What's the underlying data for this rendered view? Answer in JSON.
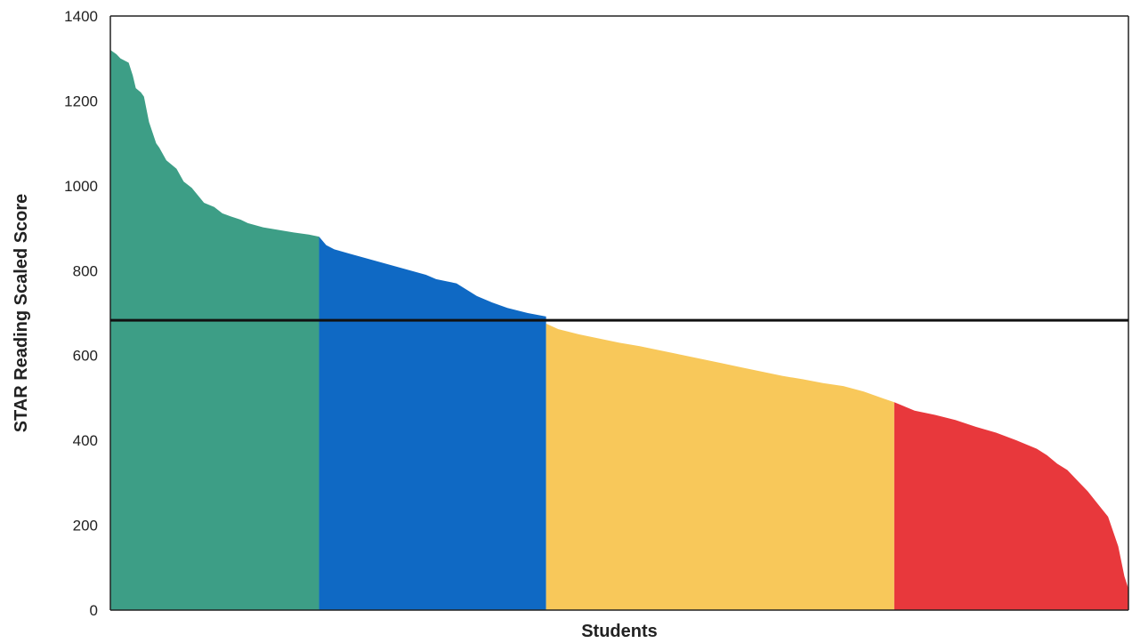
{
  "chart_data": {
    "type": "area",
    "title": "",
    "xlabel": "Students",
    "ylabel": "STAR Reading Scaled Score",
    "ylim": [
      0,
      1400
    ],
    "yticks": [
      0,
      200,
      400,
      600,
      800,
      1000,
      1200,
      1400
    ],
    "grid": false,
    "legend": "none",
    "x_domain": [
      0,
      1000
    ],
    "benchmark": {
      "value": 683,
      "color": "#111111"
    },
    "series": [
      {
        "color": "#3d9e86",
        "x": [
          0,
          6,
          10,
          18,
          22,
          25,
          30,
          33,
          38,
          45,
          48,
          55,
          60,
          65,
          72,
          80,
          92,
          102,
          110,
          118,
          128,
          135,
          150,
          165,
          180,
          195,
          205
        ],
        "values": [
          1320,
          1310,
          1300,
          1290,
          1260,
          1230,
          1220,
          1210,
          1150,
          1100,
          1090,
          1060,
          1050,
          1040,
          1010,
          995,
          960,
          950,
          935,
          928,
          920,
          912,
          902,
          896,
          890,
          885,
          880
        ]
      },
      {
        "color": "#0f69c4",
        "x": [
          205,
          212,
          220,
          235,
          250,
          265,
          280,
          295,
          310,
          320,
          330,
          340,
          350,
          360,
          375,
          390,
          410,
          428
        ],
        "values": [
          880,
          860,
          850,
          840,
          830,
          820,
          810,
          800,
          790,
          780,
          775,
          770,
          755,
          740,
          725,
          712,
          700,
          692
        ]
      },
      {
        "color": "#f8c85a",
        "x": [
          428,
          440,
          460,
          480,
          500,
          520,
          540,
          560,
          580,
          600,
          620,
          640,
          660,
          680,
          700,
          720,
          740,
          760,
          770
        ],
        "values": [
          675,
          662,
          650,
          640,
          630,
          622,
          612,
          602,
          592,
          582,
          572,
          562,
          552,
          544,
          535,
          528,
          515,
          498,
          490
        ]
      },
      {
        "color": "#e8383c",
        "x": [
          770,
          790,
          810,
          830,
          850,
          870,
          890,
          910,
          920,
          930,
          940,
          950,
          960,
          970,
          980,
          990,
          996,
          1000
        ],
        "values": [
          490,
          470,
          460,
          448,
          432,
          418,
          400,
          380,
          365,
          345,
          330,
          305,
          280,
          250,
          220,
          150,
          80,
          50
        ]
      }
    ]
  }
}
